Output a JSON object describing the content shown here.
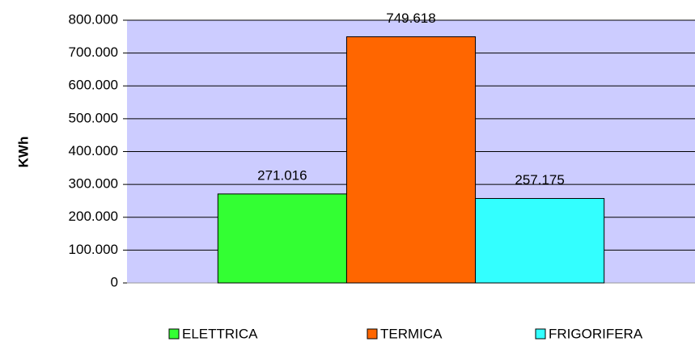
{
  "chart_data": {
    "type": "bar",
    "y_label": "KWh",
    "categories": [
      null
    ],
    "series": [
      {
        "name": "ELETTRICA",
        "color": "#33ff33",
        "values": [
          271016
        ],
        "value_labels": [
          "271.016"
        ]
      },
      {
        "name": "TERMICA",
        "color": "#ff6600",
        "values": [
          749618
        ],
        "value_labels": [
          "749.618"
        ]
      },
      {
        "name": "FRIGORIFERA",
        "color": "#33ffff",
        "values": [
          257175
        ],
        "value_labels": [
          "257.175"
        ]
      }
    ],
    "ylim": [
      0,
      800000
    ],
    "yticks": [
      0,
      {
        "value": 100000,
        "label": "100.000"
      },
      {
        "value": 200000,
        "label": "200.000"
      },
      {
        "value": 300000,
        "label": "300.000"
      },
      {
        "value": 400000,
        "label": "400.000"
      },
      {
        "value": 500000,
        "label": "500.000"
      },
      {
        "value": 600000,
        "label": "600.000"
      },
      {
        "value": 700000,
        "label": "700.000"
      },
      {
        "value": 800000,
        "label": "800.000"
      }
    ],
    "grid": true,
    "legend": "bottom",
    "plot_background": "#ccccff"
  }
}
